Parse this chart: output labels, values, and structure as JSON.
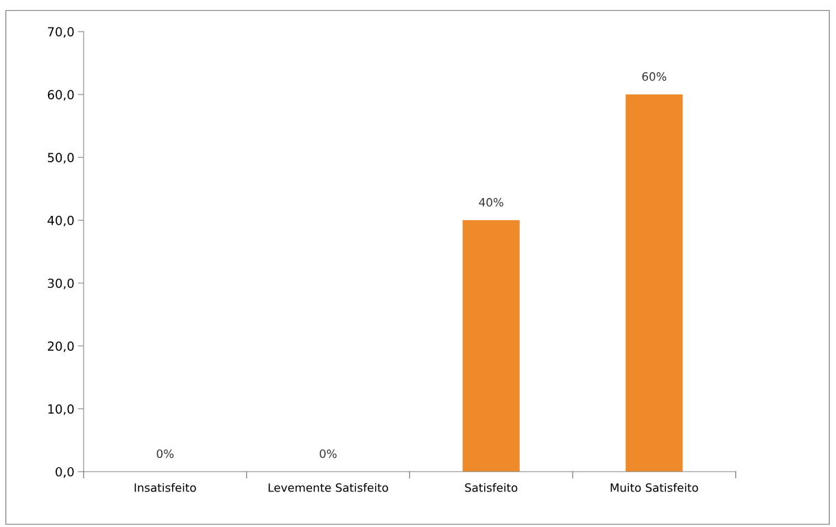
{
  "chart_data": {
    "type": "bar",
    "categories": [
      "Insatisfeito",
      "Levemente Satisfeito",
      "Satisfeito",
      "Muito Satisfeito"
    ],
    "values": [
      0,
      0,
      40,
      60
    ],
    "value_labels": [
      "0%",
      "0%",
      "40%",
      "60%"
    ],
    "color": "#ee8a2a",
    "ylim": [
      0,
      70
    ],
    "yticks": [
      {
        "value": 0,
        "label": "0,0"
      },
      {
        "value": 10,
        "label": "10,0"
      },
      {
        "value": 20,
        "label": "20,0"
      },
      {
        "value": 30,
        "label": "30,0"
      },
      {
        "value": 40,
        "label": "40,0"
      },
      {
        "value": 50,
        "label": "50,0"
      },
      {
        "value": 60,
        "label": "60,0"
      },
      {
        "value": 70,
        "label": "70,0"
      }
    ],
    "grid": false
  }
}
